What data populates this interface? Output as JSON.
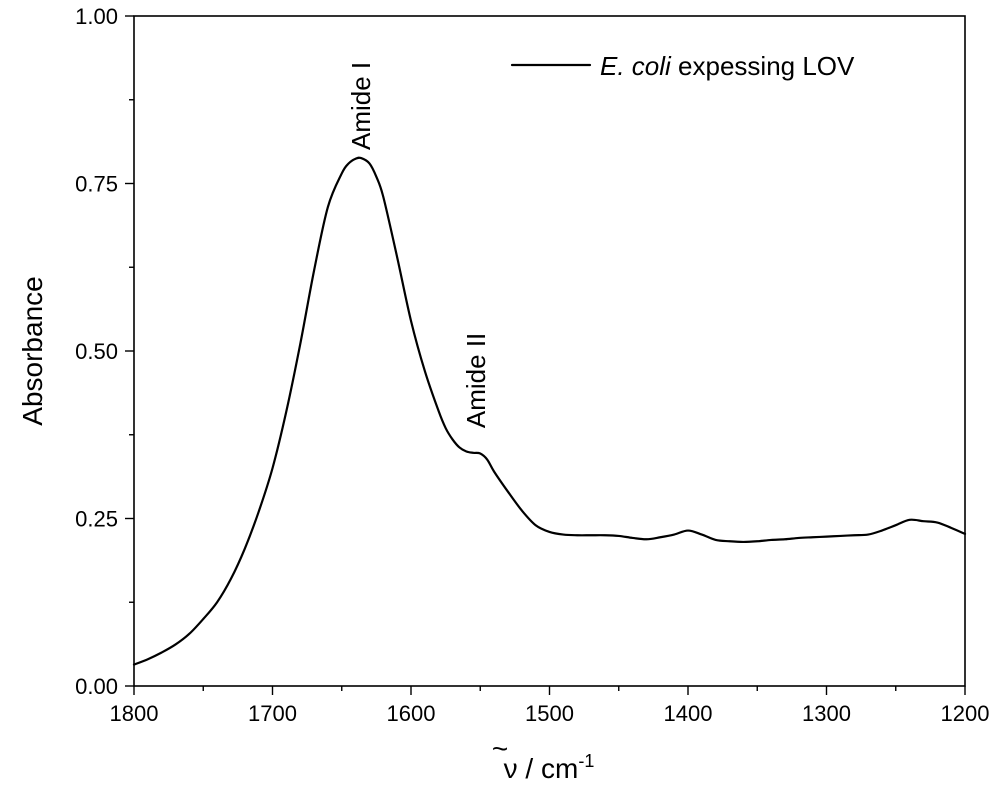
{
  "chart_data": {
    "type": "line",
    "xlabel_symbol": "ν",
    "xlabel_unit": " / cm",
    "xlabel_sup": "-1",
    "ylabel": "Absorbance",
    "xlim": [
      1800,
      1200
    ],
    "ylim": [
      0,
      1.0
    ],
    "x_major_ticks": [
      1800,
      1700,
      1600,
      1500,
      1400,
      1300,
      1200
    ],
    "x_tick_labels": [
      "1800",
      "1700",
      "1600",
      "1500",
      "1400",
      "1300",
      "1200"
    ],
    "x_minor_ticks": [
      1750,
      1650,
      1550,
      1450,
      1350,
      1250
    ],
    "y_major_ticks": [
      0,
      0.25,
      0.5,
      0.75,
      1.0
    ],
    "y_tick_labels": [
      "0.00",
      "0.25",
      "0.50",
      "0.75",
      "1.00"
    ],
    "y_minor_ticks": [
      0.125,
      0.375,
      0.625,
      0.875
    ],
    "legend": {
      "position": "top-right",
      "italic_part": "E. coli",
      "rest": " expessing LOV"
    },
    "annotations": [
      {
        "text": "Amide I",
        "x": 1636,
        "y": 0.8,
        "rotation": -90
      },
      {
        "text": "Amide II",
        "x": 1553,
        "y": 0.385,
        "rotation": -90
      }
    ],
    "series": [
      {
        "x": [
          1800,
          1790,
          1780,
          1770,
          1760,
          1750,
          1740,
          1730,
          1720,
          1710,
          1700,
          1690,
          1680,
          1670,
          1660,
          1650,
          1645,
          1640,
          1636,
          1630,
          1625,
          1620,
          1610,
          1600,
          1590,
          1580,
          1575,
          1570,
          1565,
          1560,
          1555,
          1550,
          1545,
          1540,
          1530,
          1520,
          1510,
          1500,
          1490,
          1480,
          1470,
          1460,
          1450,
          1440,
          1430,
          1420,
          1410,
          1400,
          1390,
          1380,
          1370,
          1360,
          1350,
          1340,
          1330,
          1320,
          1310,
          1300,
          1290,
          1280,
          1270,
          1260,
          1250,
          1240,
          1230,
          1220,
          1210,
          1200
        ],
        "y": [
          0.032,
          0.04,
          0.05,
          0.062,
          0.078,
          0.1,
          0.125,
          0.16,
          0.205,
          0.26,
          0.325,
          0.41,
          0.51,
          0.62,
          0.715,
          0.765,
          0.78,
          0.787,
          0.788,
          0.78,
          0.76,
          0.73,
          0.64,
          0.545,
          0.47,
          0.41,
          0.385,
          0.368,
          0.356,
          0.35,
          0.348,
          0.347,
          0.338,
          0.32,
          0.29,
          0.262,
          0.24,
          0.23,
          0.226,
          0.225,
          0.225,
          0.225,
          0.224,
          0.221,
          0.219,
          0.222,
          0.226,
          0.232,
          0.226,
          0.218,
          0.216,
          0.215,
          0.216,
          0.218,
          0.219,
          0.221,
          0.222,
          0.223,
          0.224,
          0.225,
          0.226,
          0.232,
          0.24,
          0.248,
          0.246,
          0.244,
          0.236,
          0.227
        ]
      }
    ]
  }
}
